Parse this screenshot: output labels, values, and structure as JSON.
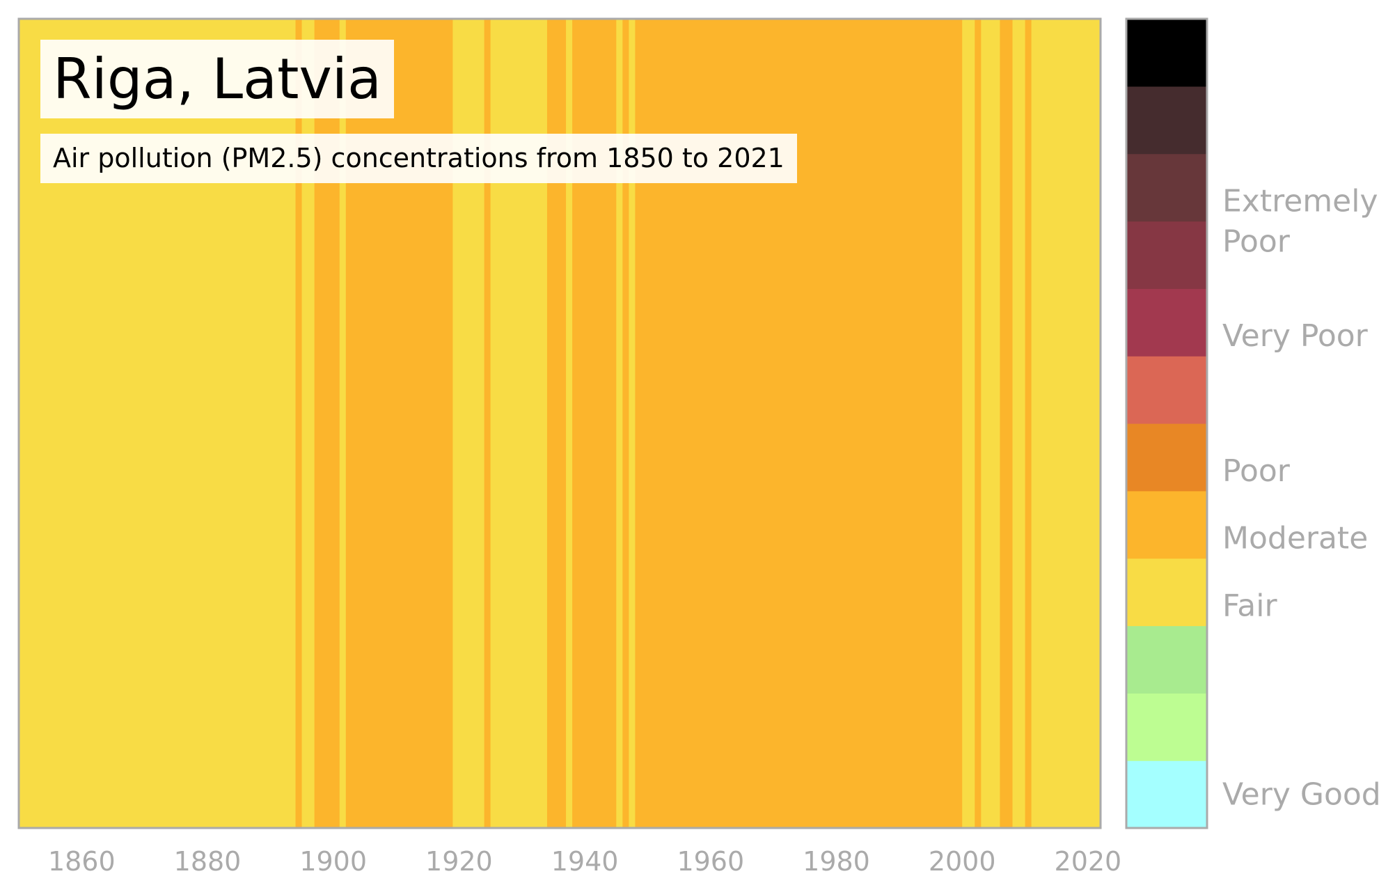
{
  "title": "Riga, Latvia",
  "subtitle": "Air pollution (PM2.5) concentrations from 1850 to 2021",
  "chart_data": {
    "type": "heatmap",
    "title": "Riga, Latvia",
    "subtitle": "Air pollution (PM2.5) concentrations from 1850 to 2021",
    "x_range": [
      1850,
      2022
    ],
    "x_ticks": [
      1860,
      1880,
      1900,
      1920,
      1940,
      1960,
      1980,
      2000,
      2020
    ],
    "grid": false,
    "category_colors": {
      "Fair": "#f8dc45",
      "Moderate": "#fcb52c"
    },
    "annual_category": [
      {
        "from": 1850,
        "to": 1893,
        "category": "Fair"
      },
      {
        "from": 1894,
        "to": 1894,
        "category": "Moderate"
      },
      {
        "from": 1895,
        "to": 1896,
        "category": "Fair"
      },
      {
        "from": 1897,
        "to": 1900,
        "category": "Moderate"
      },
      {
        "from": 1901,
        "to": 1901,
        "category": "Fair"
      },
      {
        "from": 1902,
        "to": 1918,
        "category": "Moderate"
      },
      {
        "from": 1919,
        "to": 1923,
        "category": "Fair"
      },
      {
        "from": 1924,
        "to": 1924,
        "category": "Moderate"
      },
      {
        "from": 1925,
        "to": 1933,
        "category": "Fair"
      },
      {
        "from": 1934,
        "to": 1936,
        "category": "Moderate"
      },
      {
        "from": 1937,
        "to": 1937,
        "category": "Fair"
      },
      {
        "from": 1938,
        "to": 1944,
        "category": "Moderate"
      },
      {
        "from": 1945,
        "to": 1945,
        "category": "Fair"
      },
      {
        "from": 1946,
        "to": 1946,
        "category": "Moderate"
      },
      {
        "from": 1947,
        "to": 1947,
        "category": "Fair"
      },
      {
        "from": 1948,
        "to": 1999,
        "category": "Moderate"
      },
      {
        "from": 2000,
        "to": 2001,
        "category": "Fair"
      },
      {
        "from": 2002,
        "to": 2002,
        "category": "Moderate"
      },
      {
        "from": 2003,
        "to": 2005,
        "category": "Fair"
      },
      {
        "from": 2006,
        "to": 2007,
        "category": "Moderate"
      },
      {
        "from": 2008,
        "to": 2009,
        "category": "Fair"
      },
      {
        "from": 2010,
        "to": 2010,
        "category": "Moderate"
      },
      {
        "from": 2011,
        "to": 2021,
        "category": "Fair"
      }
    ],
    "colorbar": {
      "colors_bottom_to_top": [
        "#a4ffff",
        "#bdfd92",
        "#a8eb8f",
        "#f8dc45",
        "#fcb52c",
        "#e88725",
        "#db6755",
        "#a2394f",
        "#863744",
        "#67373a",
        "#452c2e",
        "#000000"
      ],
      "labels": [
        {
          "text": "Very Good",
          "at_level": 0.5
        },
        {
          "text": "Fair",
          "at_level": 3.3
        },
        {
          "text": "Moderate",
          "at_level": 4.3
        },
        {
          "text": "Poor",
          "at_level": 5.3
        },
        {
          "text": "Very Poor",
          "at_level": 7.3
        },
        {
          "text": "Extremely",
          "at_level": 9.3
        },
        {
          "text": "Poor",
          "at_level": 8.7
        }
      ]
    }
  }
}
